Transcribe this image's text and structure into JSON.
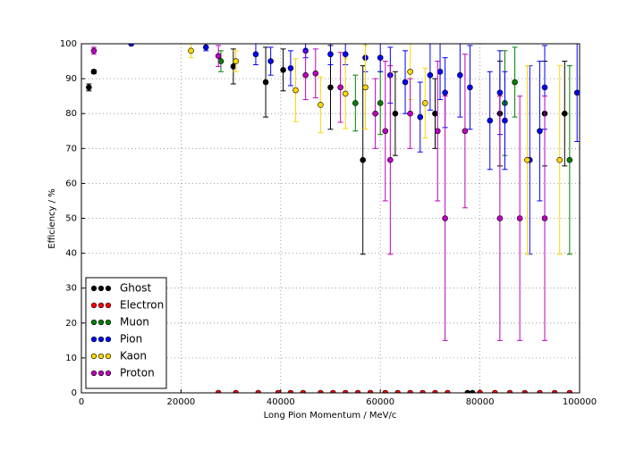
{
  "chart_data": {
    "type": "scatter",
    "x_label": "Long Pion Momentum / MeV/c",
    "y_label": "Efficiency / %",
    "xlim": [
      0,
      100000
    ],
    "ylim": [
      0,
      100
    ],
    "xticks": [
      0,
      20000,
      40000,
      60000,
      80000,
      100000
    ],
    "yticks": [
      0,
      10,
      20,
      30,
      40,
      50,
      60,
      70,
      80,
      90,
      100
    ],
    "grid": true,
    "legend": "lower left",
    "series": [
      {
        "name": "Ghost",
        "color": "#000000",
        "x": [
          1500,
          2500,
          30500,
          37000,
          40500,
          50000,
          56500,
          63000,
          71000,
          77500,
          78500,
          84000,
          93000,
          97000
        ],
        "values": [
          87.5,
          92,
          93.5,
          89,
          92.5,
          87.5,
          66.7,
          80,
          80,
          0,
          0,
          80,
          80,
          80
        ],
        "errors": [
          1,
          0.5,
          5,
          10,
          6,
          12,
          27,
          12,
          10,
          0,
          0,
          15,
          15,
          15
        ]
      },
      {
        "name": "Electron",
        "color": "#ff0000",
        "x": [
          27500,
          31000,
          35500,
          39500,
          42000,
          44500,
          48000,
          50500,
          53000,
          55500,
          58000,
          61000,
          63500,
          66000,
          68500,
          71000,
          73500,
          80000,
          83000,
          86000,
          89000,
          92000,
          95000,
          98000
        ],
        "values": [
          0,
          0,
          0,
          0,
          0,
          0,
          0,
          0,
          0,
          0,
          0,
          0,
          0,
          0,
          0,
          0,
          0,
          0,
          0,
          0,
          0,
          0,
          0,
          0
        ],
        "errors": [
          0,
          0,
          0,
          0,
          0,
          0,
          0,
          0,
          0,
          0,
          0,
          0,
          0,
          0,
          0,
          0,
          0,
          0,
          0,
          0,
          0,
          0,
          0,
          0
        ]
      },
      {
        "name": "Muon",
        "color": "#008000",
        "x": [
          28000,
          55000,
          60000,
          85000,
          87000,
          98000
        ],
        "values": [
          95,
          83,
          83,
          83,
          89,
          66.7
        ],
        "errors": [
          3,
          8,
          9,
          15,
          10,
          27
        ]
      },
      {
        "name": "Pion",
        "color": "#0000ff",
        "x": [
          10000,
          25000,
          35000,
          38000,
          42000,
          45000,
          50000,
          53000,
          57000,
          60000,
          62000,
          65000,
          68000,
          70000,
          72000,
          73000,
          76000,
          78000,
          82000,
          84000,
          85000,
          90000,
          92000,
          93000,
          99500
        ],
        "values": [
          100,
          99,
          97,
          95,
          93,
          98,
          97,
          97,
          96,
          96,
          91,
          89,
          79,
          91,
          92,
          86,
          91,
          87.5,
          78,
          86,
          78,
          66.7,
          75,
          87.5,
          86
        ],
        "errors": [
          0,
          1,
          3,
          4,
          5,
          2,
          3,
          3,
          4,
          4,
          8,
          9,
          10,
          10,
          8,
          10,
          12,
          12,
          14,
          12,
          14,
          27,
          20,
          12,
          14
        ]
      },
      {
        "name": "Kaon",
        "color": "#ffd700",
        "x": [
          22000,
          31000,
          43000,
          48000,
          53000,
          57000,
          66000,
          69000,
          89500,
          96000
        ],
        "values": [
          98,
          95,
          86.7,
          82.5,
          85.7,
          87.5,
          92,
          83,
          66.7,
          66.7
        ],
        "errors": [
          2,
          3,
          9,
          8,
          10,
          12,
          8,
          10,
          27,
          27
        ]
      },
      {
        "name": "Proton",
        "color": "#bf00bf",
        "x": [
          2500,
          27500,
          45000,
          47000,
          52000,
          59000,
          61000,
          62000,
          66000,
          71500,
          73000,
          77000,
          84000,
          88000,
          93000
        ],
        "values": [
          98,
          96.5,
          91,
          91.5,
          87.5,
          80,
          75,
          66.7,
          80,
          75,
          50,
          75,
          50,
          50,
          50
        ],
        "errors": [
          1,
          3,
          7,
          7,
          10,
          10,
          20,
          27,
          10,
          20,
          35,
          22,
          35,
          35,
          35
        ]
      }
    ]
  }
}
